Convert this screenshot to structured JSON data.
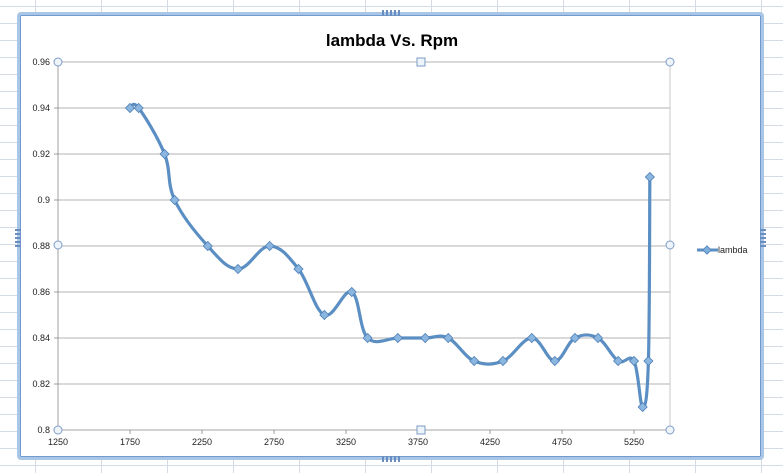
{
  "chart_data": {
    "type": "line",
    "title": "lambda Vs. Rpm",
    "xlabel": "",
    "ylabel": "",
    "xlim": [
      1250,
      5500
    ],
    "ylim": [
      0.8,
      0.96
    ],
    "x_ticks": [
      1250,
      1750,
      2250,
      2750,
      3250,
      3750,
      4250,
      4750,
      5250
    ],
    "y_ticks": [
      0.8,
      0.82,
      0.84,
      0.86,
      0.88,
      0.9,
      0.92,
      0.94,
      0.96
    ],
    "x_tick_labels": [
      "1250",
      "1750",
      "2250",
      "2750",
      "3250",
      "3750",
      "4250",
      "4750",
      "5250"
    ],
    "y_tick_labels": [
      "0.8",
      "0.82",
      "0.84",
      "0.86",
      "0.88",
      "0.9",
      "0.92",
      "0.94",
      "0.96"
    ],
    "grid": true,
    "legend_position": "right",
    "series": [
      {
        "name": "lambda",
        "color": "#5b8fc4",
        "x": [
          1750,
          1810,
          1990,
          2060,
          2290,
          2500,
          2720,
          2920,
          3100,
          3290,
          3400,
          3610,
          3800,
          3960,
          4140,
          4340,
          4540,
          4700,
          4840,
          5000,
          5140,
          5250,
          5310,
          5350,
          5360
        ],
        "y": [
          0.94,
          0.94,
          0.92,
          0.9,
          0.88,
          0.87,
          0.88,
          0.87,
          0.85,
          0.86,
          0.84,
          0.84,
          0.84,
          0.84,
          0.83,
          0.83,
          0.84,
          0.83,
          0.84,
          0.84,
          0.83,
          0.83,
          0.81,
          0.83,
          0.91
        ]
      }
    ]
  }
}
